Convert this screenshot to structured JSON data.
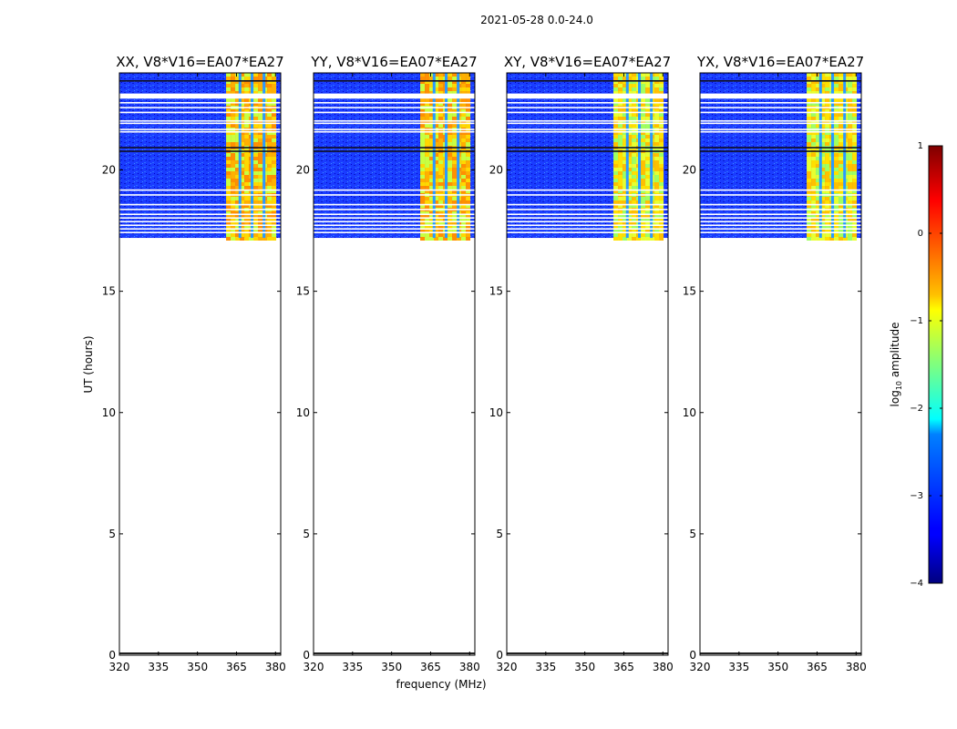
{
  "figure_title": "2021-05-28 0.0-24.0",
  "chart_data": {
    "type": "heatmap",
    "title": "2021-05-28 0.0-24.0",
    "xlabel": "frequency (MHz)",
    "ylabel": "UT (hours)",
    "xlim": [
      320,
      382
    ],
    "ylim": [
      0,
      24
    ],
    "xticks": [
      320,
      335,
      350,
      365,
      380
    ],
    "yticks": [
      0,
      5,
      10,
      15,
      20
    ],
    "data_time_range": [
      17.2,
      24.0
    ],
    "high_amplitude_band": [
      361,
      379.5
    ],
    "panels": [
      {
        "title": "XX, V8*V16=EA07*EA27",
        "polarization": "XX"
      },
      {
        "title": "YY, V8*V16=EA07*EA27",
        "polarization": "YY"
      },
      {
        "title": "XY, V8*V16=EA07*EA27",
        "polarization": "XY"
      },
      {
        "title": "YX, V8*V16=EA07*EA27",
        "polarization": "YX"
      }
    ],
    "colorbar": {
      "label": "log10 amplitude",
      "label_base": "log",
      "label_sub": "10",
      "label_rest": " amplitude",
      "range": [
        -4,
        1
      ],
      "ticks": [
        1,
        0,
        -1,
        -2,
        -3,
        -4
      ],
      "tick_labels": [
        "1",
        "0",
        "−1",
        "−2",
        "−3",
        "−4"
      ],
      "colormap": "jet"
    }
  }
}
